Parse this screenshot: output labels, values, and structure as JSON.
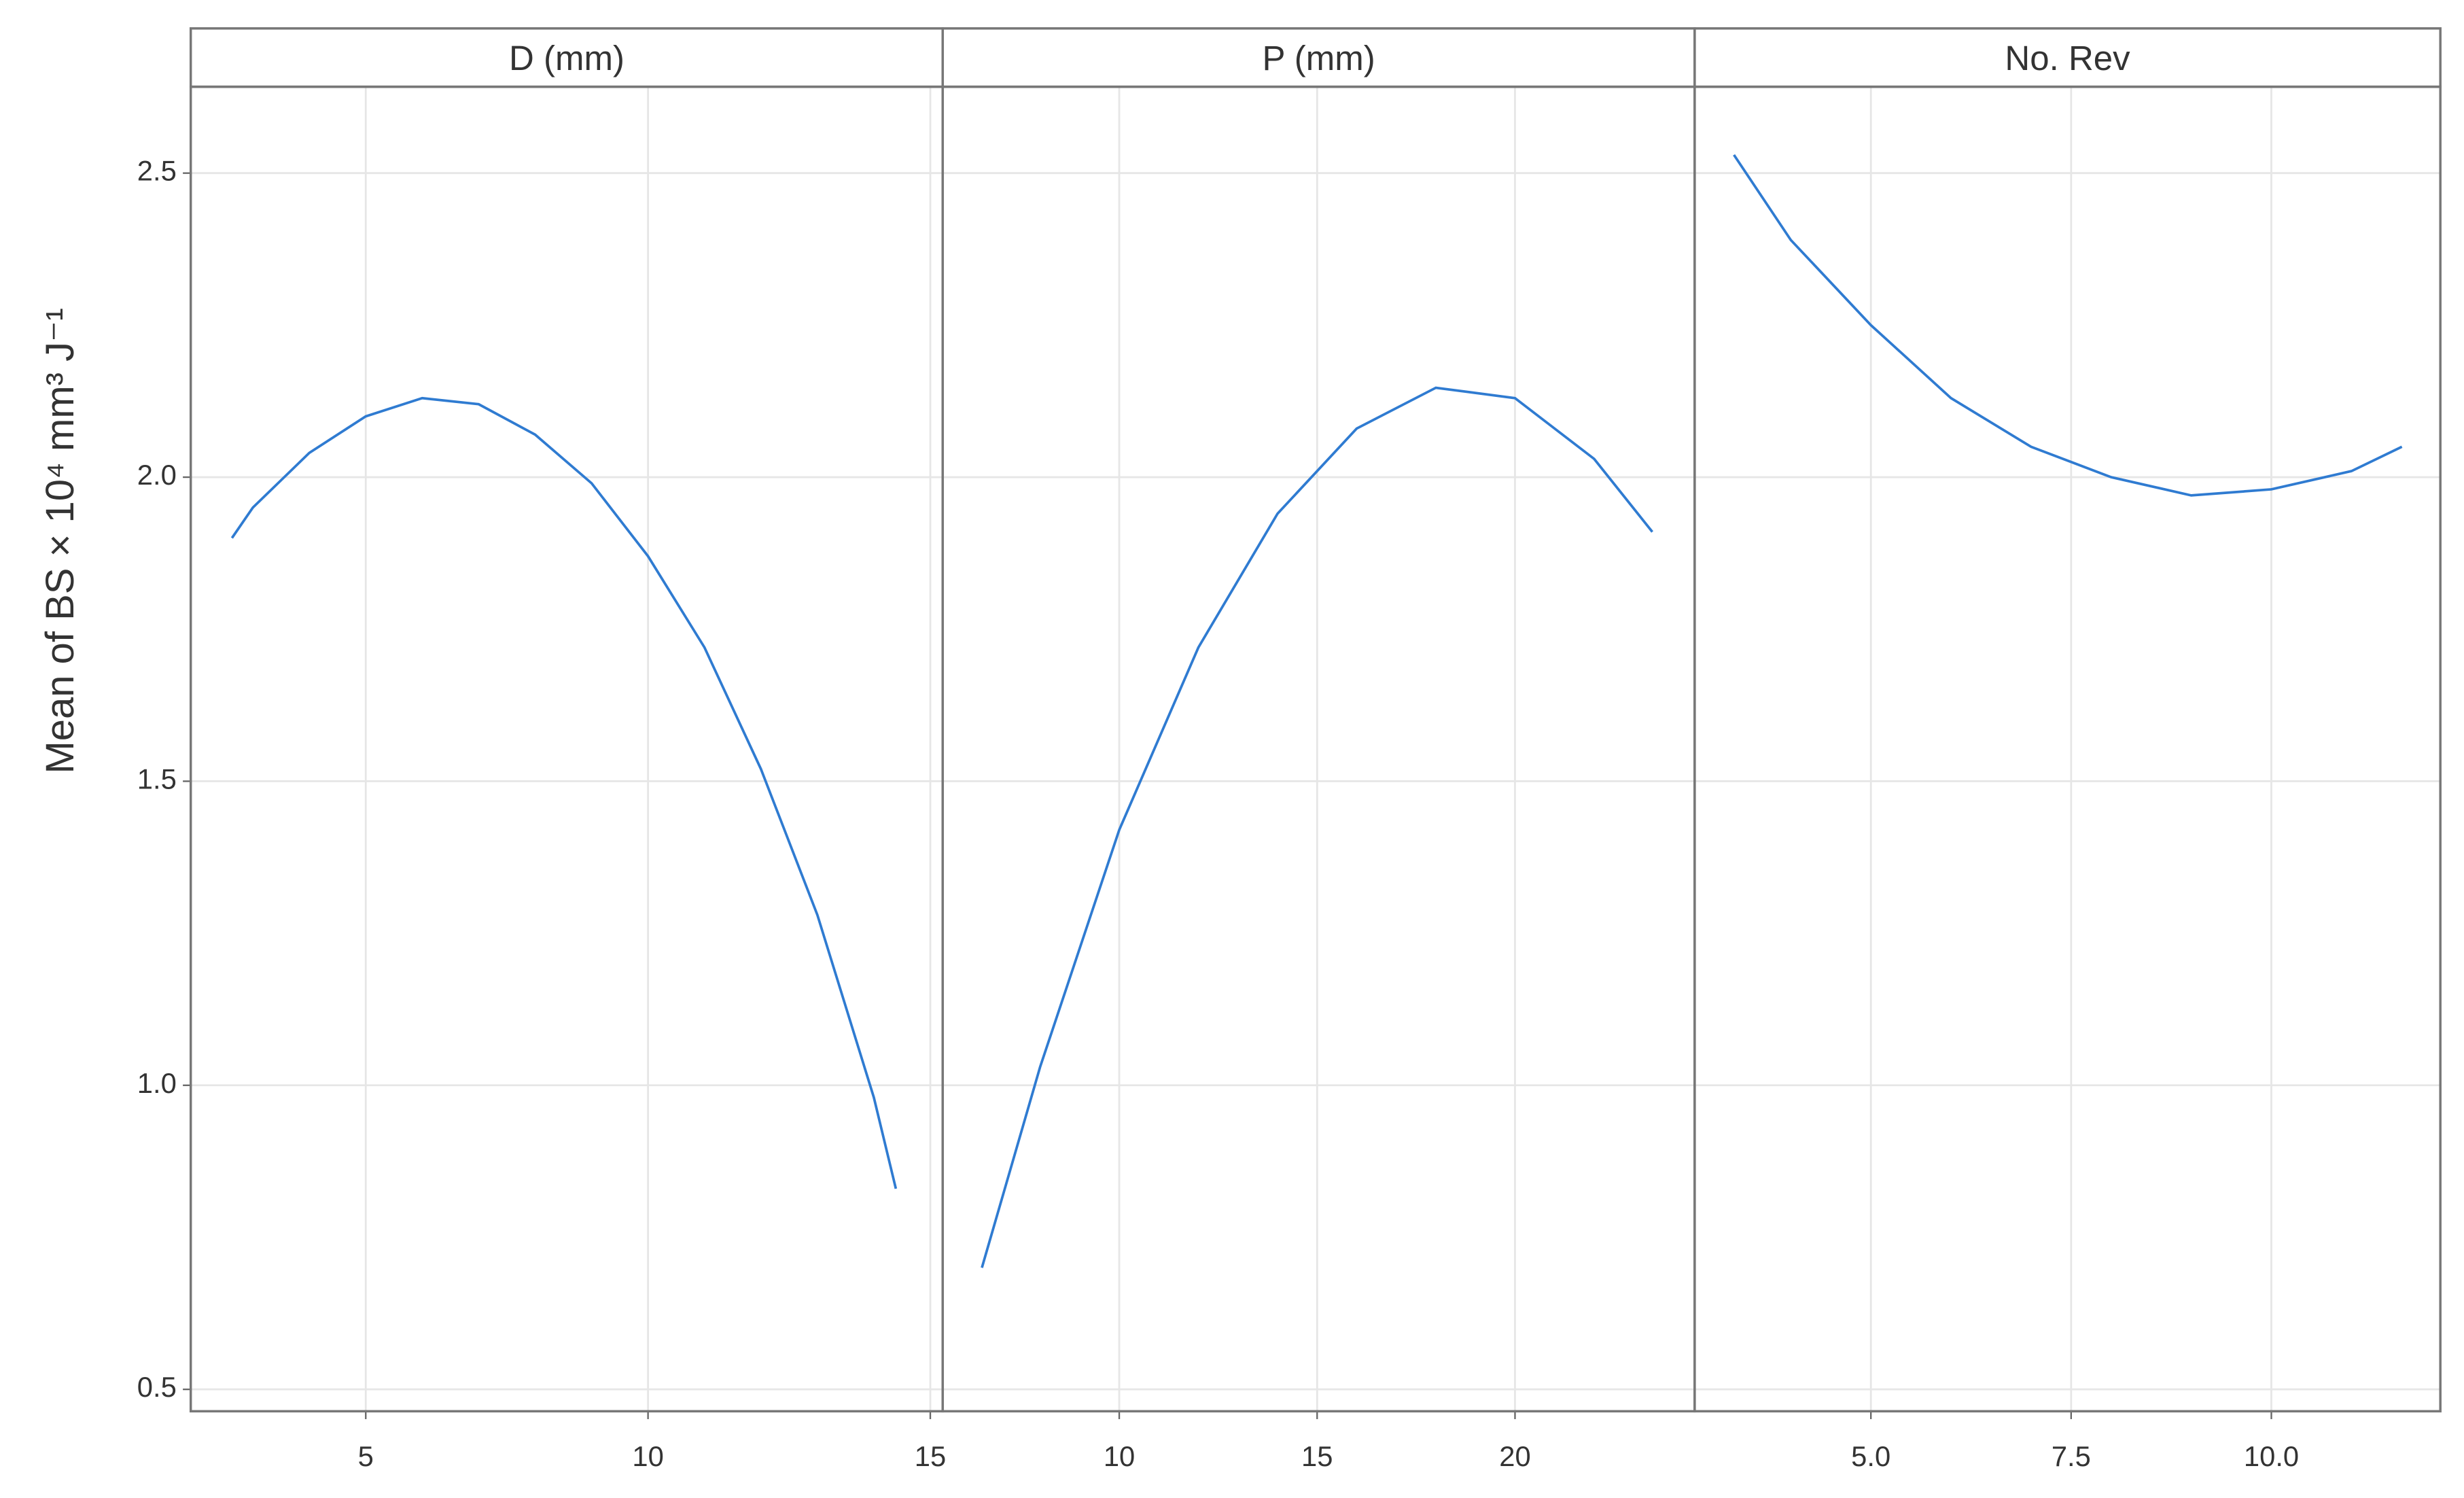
{
  "chart_data": [
    {
      "type": "line",
      "title": "D (mm)",
      "y_label": "Mean of BS × 10⁴ mm³ J⁻¹",
      "x": [
        2.63,
        3,
        4,
        5,
        6,
        7,
        8,
        9,
        10,
        11,
        12,
        13,
        14,
        14.39
      ],
      "values": [
        1.9,
        1.95,
        2.04,
        2.1,
        2.13,
        2.12,
        2.07,
        1.99,
        1.87,
        1.72,
        1.52,
        1.28,
        0.98,
        0.83
      ],
      "color": "#2f7bd1",
      "xlim": [
        1.9,
        15.22
      ],
      "xticks": [
        5,
        10,
        15
      ],
      "ylim": [
        0.464,
        2.642
      ],
      "yticks": [
        0.5,
        {
          "value": 1,
          "label": "1.0"
        },
        1.5,
        {
          "value": 2,
          "label": "2.0"
        },
        2.5
      ],
      "grid": true
    },
    {
      "type": "line",
      "title": "P (mm)",
      "x": [
        6.53,
        8,
        10,
        12,
        14,
        16,
        18,
        20,
        22,
        23.47
      ],
      "values": [
        0.7,
        1.03,
        1.42,
        1.72,
        1.94,
        2.08,
        2.147,
        2.13,
        2.03,
        1.91
      ],
      "color": "#2f7bd1",
      "xlim": [
        5.54,
        24.54
      ],
      "xticks": [
        10,
        15,
        20
      ],
      "ylim": [
        0.464,
        2.642
      ],
      "yticks": [
        0.5,
        {
          "value": 1,
          "label": "1.0"
        },
        1.5,
        {
          "value": 2,
          "label": "2.0"
        },
        2.5
      ],
      "grid": true
    },
    {
      "type": "line",
      "title": "No. Rev",
      "x": [
        3.29,
        4,
        5,
        6,
        7,
        8,
        9,
        10,
        11,
        11.63
      ],
      "values": [
        2.53,
        2.39,
        2.25,
        2.13,
        2.05,
        2.0,
        1.97,
        1.98,
        2.01,
        2.05
      ],
      "color": "#2f7bd1",
      "xlim": [
        2.8,
        12.11
      ],
      "xticks": [
        {
          "value": 5,
          "label": "5.0"
        },
        7.5,
        {
          "value": 10,
          "label": "10.0"
        }
      ],
      "ylim": [
        0.464,
        2.642
      ],
      "yticks": [
        0.5,
        {
          "value": 1,
          "label": "1.0"
        },
        1.5,
        {
          "value": 2,
          "label": "2.0"
        },
        2.5
      ],
      "grid": true
    }
  ]
}
